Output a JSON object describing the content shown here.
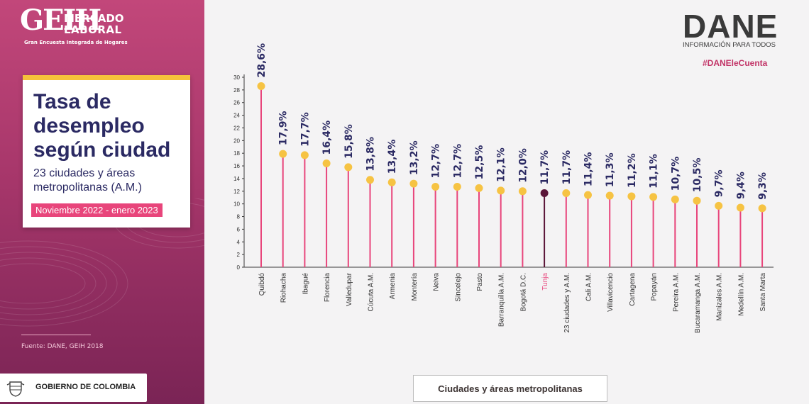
{
  "header": {
    "logo_text": "GEIH",
    "logo_line1": "MERCADO",
    "logo_line2": "LABORAL",
    "logo_subtitle": "Gran Encuesta Integrada de Hogares"
  },
  "card": {
    "title": "Tasa de desempleo según ciudad",
    "subtitle": "23 ciudades y áreas metropolitanas (A.M.)",
    "period": "Noviembre 2022 - enero 2023"
  },
  "source": "Fuente: DANE, GEIH 2018",
  "government": "GOBIERNO DE COLOMBIA",
  "dane": {
    "name": "DANE",
    "tagline": "INFORMACIÓN PARA TODOS",
    "hashtag": "#DANEleCuenta"
  },
  "colors": {
    "stem": "#e8457b",
    "dot": "#f6c343",
    "highlight": "#5a1538",
    "label": "#2b2a63",
    "axis": "#3a3a3a"
  },
  "chart_data": {
    "type": "lollipop",
    "xlabel": "Ciudades y áreas metropolitanas",
    "ylim": [
      0,
      30
    ],
    "yticks": [
      0,
      2,
      4,
      6,
      8,
      10,
      12,
      14,
      16,
      18,
      20,
      22,
      24,
      26,
      28,
      30
    ],
    "highlight_index": 13,
    "categories": [
      "Quibdó",
      "Riohacha",
      "Ibagué",
      "Florencia",
      "Valledupar",
      "Cúcuta A.M.",
      "Armenia",
      "Montería",
      "Neiva",
      "Sincelejo",
      "Pasto",
      "Barranquilla A.M.",
      "Bogotá D.C.",
      "Tunja",
      "23 ciudades y A.M.",
      "Cali A.M.",
      "Villavicencio",
      "Cartagena",
      "Popayán",
      "Pereira A.M.",
      "Bucaramanga A.M.",
      "Manizales A.M.",
      "Medellín A.M.",
      "Santa Marta"
    ],
    "values": [
      28.6,
      17.9,
      17.7,
      16.4,
      15.8,
      13.8,
      13.4,
      13.2,
      12.7,
      12.7,
      12.5,
      12.1,
      12.0,
      11.7,
      11.7,
      11.4,
      11.3,
      11.2,
      11.1,
      10.7,
      10.5,
      9.7,
      9.4,
      9.3
    ],
    "value_labels": [
      "28,6%",
      "17,9%",
      "17,7%",
      "16,4%",
      "15,8%",
      "13,8%",
      "13,4%",
      "13,2%",
      "12,7%",
      "12,7%",
      "12,5%",
      "12,1%",
      "12,0%",
      "11,7%",
      "11,7%",
      "11,4%",
      "11,3%",
      "11,2%",
      "11,1%",
      "10,7%",
      "10,5%",
      "9,7%",
      "9,4%",
      "9,3%"
    ]
  }
}
